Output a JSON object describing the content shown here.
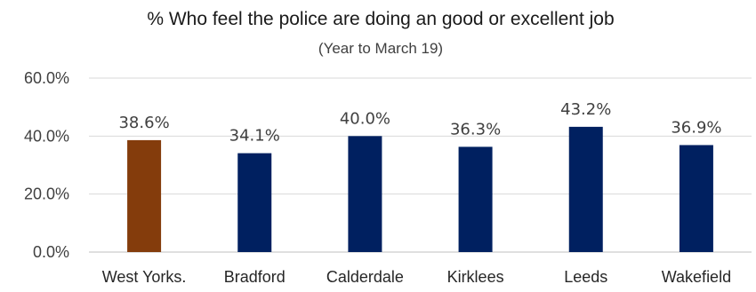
{
  "chart_data": {
    "type": "bar",
    "title": "% Who feel the police are doing an good or excellent job",
    "subtitle": "(Year to March 19)",
    "categories": [
      "West Yorks.",
      "Bradford",
      "Calderdale",
      "Kirklees",
      "Leeds",
      "Wakefield"
    ],
    "values": [
      38.6,
      34.1,
      40.0,
      36.3,
      43.2,
      36.9
    ],
    "data_labels": [
      "38.6%",
      "34.1%",
      "40.0%",
      "36.3%",
      "43.2%",
      "36.9%"
    ],
    "colors": [
      "#843c0c",
      "#002060",
      "#002060",
      "#002060",
      "#002060",
      "#002060"
    ],
    "ylim": [
      0,
      60
    ],
    "yticks": [
      0,
      20,
      40,
      60
    ],
    "ytick_labels": [
      "0.0%",
      "20.0%",
      "40.0%",
      "60.0%"
    ],
    "grid": true,
    "legend": "none"
  }
}
